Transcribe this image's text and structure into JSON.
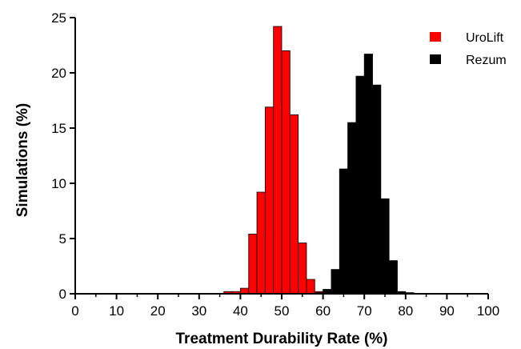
{
  "chart_data": {
    "type": "bar",
    "title": "",
    "xlabel": "Treatment Durability Rate (%)",
    "ylabel": "Simulations (%)",
    "xlim": [
      0,
      100
    ],
    "ylim": [
      0,
      25
    ],
    "x_ticks": [
      "0",
      "10",
      "20",
      "30",
      "40",
      "50",
      "60",
      "70",
      "80",
      "90",
      "100"
    ],
    "y_ticks": [
      "0",
      "5",
      "10",
      "15",
      "20",
      "25"
    ],
    "bin_width": 2,
    "legend_position": "top-right",
    "series": [
      {
        "name": "UroLift",
        "color": "#ff0000",
        "bins": [
          36,
          38,
          40,
          42,
          44,
          46,
          48,
          50,
          52,
          54,
          56,
          58
        ],
        "values": [
          0.2,
          0.2,
          0.5,
          5.4,
          9.2,
          16.9,
          24.2,
          22.0,
          16.2,
          4.6,
          1.3,
          0.2
        ]
      },
      {
        "name": "Rezum",
        "color": "#000000",
        "bins": [
          58,
          60,
          62,
          64,
          66,
          68,
          70,
          72,
          74,
          76,
          78,
          80
        ],
        "values": [
          0.1,
          0.4,
          2.2,
          11.3,
          15.5,
          19.7,
          21.7,
          18.9,
          8.6,
          3.0,
          0.2,
          0.1
        ]
      }
    ]
  }
}
